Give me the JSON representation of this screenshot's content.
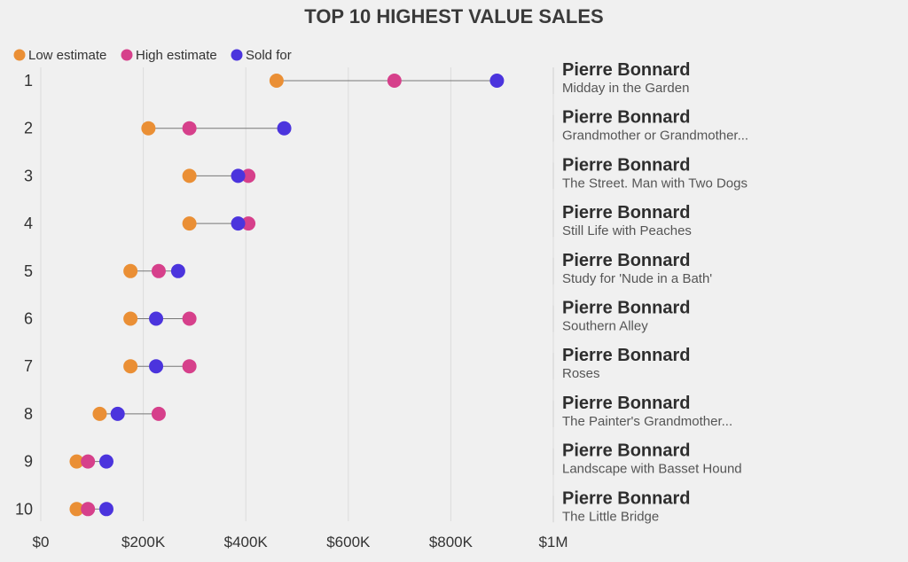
{
  "chart_data": {
    "type": "dot-range",
    "title": "TOP 10 HIGHEST VALUE SALES",
    "series": [
      {
        "key": "low",
        "name": "Low estimate",
        "color": "#ea8f35"
      },
      {
        "key": "high",
        "name": "High estimate",
        "color": "#d6408b"
      },
      {
        "key": "sold",
        "name": "Sold for",
        "color": "#4b34dd"
      }
    ],
    "xlim": [
      0,
      1000000
    ],
    "x_ticks": [
      {
        "value": 0,
        "label": "$0"
      },
      {
        "value": 200000,
        "label": "$200K"
      },
      {
        "value": 400000,
        "label": "$400K"
      },
      {
        "value": 600000,
        "label": "$600K"
      },
      {
        "value": 800000,
        "label": "$800K"
      },
      {
        "value": 1000000,
        "label": "$1M"
      }
    ],
    "grid": true,
    "legend_position": "top-left",
    "rows": [
      {
        "rank": "1",
        "artist": "Pierre Bonnard",
        "work": "Midday in the Garden",
        "low": 460000,
        "high": 690000,
        "sold": 890000
      },
      {
        "rank": "2",
        "artist": "Pierre Bonnard",
        "work": "Grandmother or Grandmother...",
        "low": 210000,
        "high": 290000,
        "sold": 475000
      },
      {
        "rank": "3",
        "artist": "Pierre Bonnard",
        "work": "The Street. Man with Two Dogs",
        "low": 290000,
        "high": 405000,
        "sold": 385000
      },
      {
        "rank": "4",
        "artist": "Pierre Bonnard",
        "work": "Still Life with Peaches",
        "low": 290000,
        "high": 405000,
        "sold": 385000
      },
      {
        "rank": "5",
        "artist": "Pierre Bonnard",
        "work": "Study for 'Nude in a Bath'",
        "low": 175000,
        "high": 230000,
        "sold": 268000
      },
      {
        "rank": "6",
        "artist": "Pierre Bonnard",
        "work": "Southern Alley",
        "low": 175000,
        "high": 290000,
        "sold": 225000
      },
      {
        "rank": "7",
        "artist": "Pierre Bonnard",
        "work": "Roses",
        "low": 175000,
        "high": 290000,
        "sold": 225000
      },
      {
        "rank": "8",
        "artist": "Pierre Bonnard",
        "work": "The Painter's Grandmother...",
        "low": 115000,
        "high": 230000,
        "sold": 150000
      },
      {
        "rank": "9",
        "artist": "Pierre Bonnard",
        "work": "Landscape with Basset Hound",
        "low": 70000,
        "high": 92000,
        "sold": 128000
      },
      {
        "rank": "10",
        "artist": "Pierre Bonnard",
        "work": "The Little Bridge",
        "low": 70000,
        "high": 92000,
        "sold": 128000
      }
    ]
  }
}
